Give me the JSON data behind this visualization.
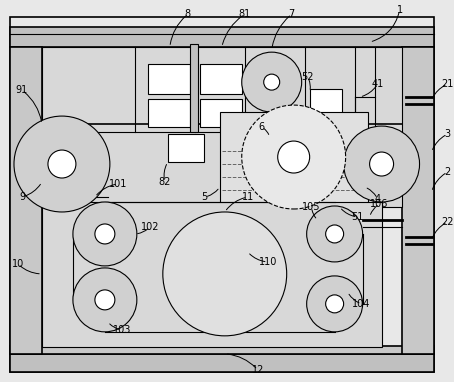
{
  "bg_color": "#e8e8e8",
  "line_color": "#000000",
  "frame_fill": "#c8c8c8",
  "inner_fill": "#e8e8e8",
  "white": "#ffffff",
  "roller_fill": "#d8d8d8"
}
